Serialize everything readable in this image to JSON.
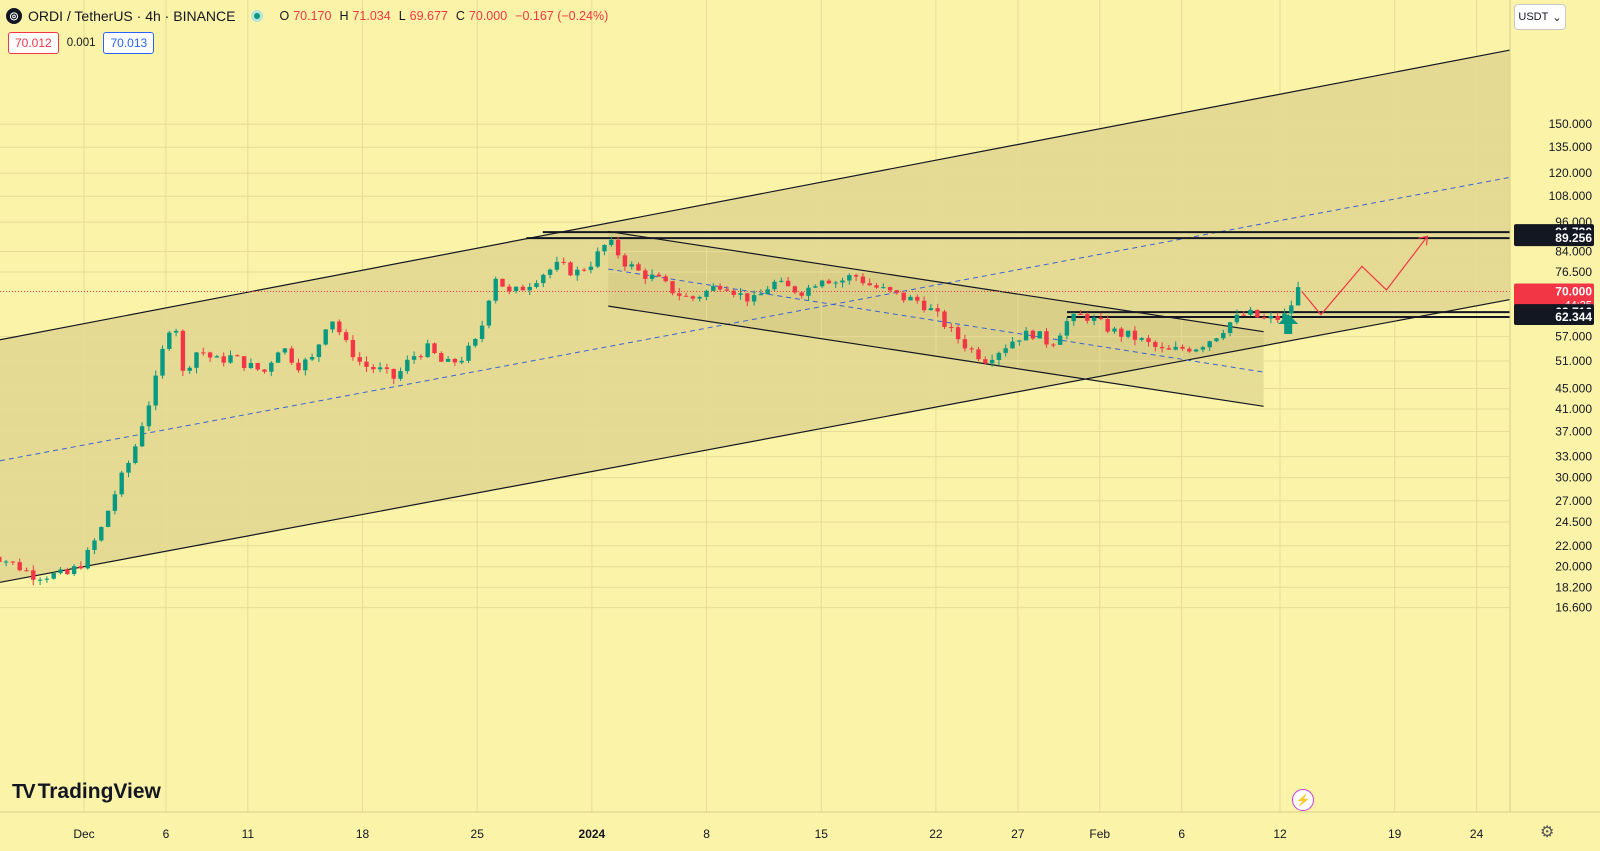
{
  "header": {
    "symbol_icon": "ordi-coin-icon",
    "title": "ORDI / TetherUS · 4h · BINANCE",
    "open_label": "O",
    "open": "70.170",
    "high_label": "H",
    "high": "71.034",
    "low_label": "L",
    "low": "69.677",
    "close_label": "C",
    "close": "70.000",
    "change": "−0.167 (−0.24%)"
  },
  "quote": {
    "sell": "70.012",
    "spread": "0.001",
    "buy": "70.013"
  },
  "currency_selector": {
    "label": "USDT",
    "icon": "chevron-down-icon"
  },
  "branding": {
    "logo_text": "TradingView",
    "logo_mark": "TV"
  },
  "colors": {
    "background": "#fbf3a8",
    "bull": "#089981",
    "bear": "#f23645",
    "channel_fill": "#c9bd7a",
    "dashed_midline": "#3a63d6",
    "projection": "#f23645"
  },
  "chart_data": {
    "type": "candlestick",
    "title": "ORDI / TetherUS · 4h · BINANCE",
    "y_scale": "log",
    "ylim": [
      15.7,
      194
    ],
    "xlabel": "",
    "ylabel": "",
    "x_ticks": [
      "Dec",
      "6",
      "11",
      "18",
      "25",
      "2024",
      "8",
      "15",
      "22",
      "27",
      "Feb",
      "6",
      "12",
      "19",
      "24"
    ],
    "x_tick_dates": [
      "2023-12-01",
      "2023-12-06",
      "2023-12-11",
      "2023-12-18",
      "2023-12-25",
      "2024-01-01",
      "2024-01-08",
      "2024-01-15",
      "2024-01-22",
      "2024-01-27",
      "2024-02-01",
      "2024-02-06",
      "2024-02-12",
      "2024-02-19",
      "2024-02-24"
    ],
    "y_ticks": [
      "150.000",
      "135.000",
      "120.000",
      "108.000",
      "96.000",
      "84.000",
      "76.500",
      "57.000",
      "51.000",
      "45.000",
      "41.000",
      "37.000",
      "33.000",
      "30.000",
      "27.000",
      "24.500",
      "22.000",
      "20.000",
      "18.200",
      "16.600"
    ],
    "y_tick_values": [
      150,
      135,
      120,
      108,
      96,
      84,
      76.5,
      57,
      51,
      45,
      41,
      37,
      33,
      30,
      27,
      24.5,
      22,
      20,
      18.2,
      16.6
    ],
    "price_labels": [
      {
        "value": 91.72,
        "text": "91.720",
        "style": "dark"
      },
      {
        "value": 89.256,
        "text": "89.256",
        "style": "dark"
      },
      {
        "value": 70.0,
        "text": "70.000",
        "sub": "44:25",
        "style": "current"
      },
      {
        "value": 63.716,
        "text": "63.716",
        "style": "dark"
      },
      {
        "value": 62.344,
        "text": "62.344",
        "style": "dark"
      }
    ],
    "current_price": 70.0,
    "price_path": [
      [
        "2023-11-25",
        21.5
      ],
      [
        "2023-11-27",
        20.0
      ],
      [
        "2023-11-28",
        19.2
      ],
      [
        "2023-11-30",
        19.3
      ],
      [
        "2023-12-01",
        20.5
      ],
      [
        "2023-12-02",
        23.5
      ],
      [
        "2023-12-03",
        28.5
      ],
      [
        "2023-12-04",
        33.5
      ],
      [
        "2023-12-05",
        42.5
      ],
      [
        "2023-12-05T12",
        48.0
      ],
      [
        "2023-12-06",
        57.0
      ],
      [
        "2023-12-06T12",
        63.0
      ],
      [
        "2023-12-07",
        48.0
      ],
      [
        "2023-12-08",
        54.0
      ],
      [
        "2023-12-09",
        51.0
      ],
      [
        "2023-12-10",
        52.0
      ],
      [
        "2023-12-11",
        50.0
      ],
      [
        "2023-12-12",
        48.5
      ],
      [
        "2023-12-13",
        55.0
      ],
      [
        "2023-12-14",
        50.0
      ],
      [
        "2023-12-15",
        51.5
      ],
      [
        "2023-12-16",
        63.0
      ],
      [
        "2023-12-17",
        55.0
      ],
      [
        "2023-12-18",
        50.0
      ],
      [
        "2023-12-19",
        49.0
      ],
      [
        "2023-12-20",
        47.0
      ],
      [
        "2023-12-21",
        52.0
      ],
      [
        "2023-12-22",
        54.0
      ],
      [
        "2023-12-23",
        50.0
      ],
      [
        "2023-12-24",
        51.5
      ],
      [
        "2023-12-25",
        56.0
      ],
      [
        "2023-12-25T12",
        63.0
      ],
      [
        "2023-12-26",
        76.0
      ],
      [
        "2023-12-27",
        69.0
      ],
      [
        "2023-12-28",
        72.0
      ],
      [
        "2023-12-29",
        76.0
      ],
      [
        "2023-12-30",
        79.0
      ],
      [
        "2023-12-31",
        76.0
      ],
      [
        "2024-01-01",
        80.0
      ],
      [
        "2024-01-02",
        88.0
      ],
      [
        "2024-01-03",
        80.0
      ],
      [
        "2024-01-04",
        76.0
      ],
      [
        "2024-01-05",
        74.0
      ],
      [
        "2024-01-06",
        70.0
      ],
      [
        "2024-01-07",
        67.5
      ],
      [
        "2024-01-08",
        70.0
      ],
      [
        "2024-01-09",
        73.0
      ],
      [
        "2024-01-10",
        69.0
      ],
      [
        "2024-01-11",
        67.0
      ],
      [
        "2024-01-12",
        73.0
      ],
      [
        "2024-01-13",
        71.0
      ],
      [
        "2024-01-14",
        70.0
      ],
      [
        "2024-01-15",
        75.0
      ],
      [
        "2024-01-16",
        73.0
      ],
      [
        "2024-01-17",
        75.5
      ],
      [
        "2024-01-18",
        72.0
      ],
      [
        "2024-01-19",
        70.0
      ],
      [
        "2024-01-20",
        68.0
      ],
      [
        "2024-01-21",
        67.0
      ],
      [
        "2024-01-22",
        63.0
      ],
      [
        "2024-01-23",
        58.0
      ],
      [
        "2024-01-24",
        54.0
      ],
      [
        "2024-01-25",
        51.5
      ],
      [
        "2024-01-26",
        54.0
      ],
      [
        "2024-01-27",
        57.0
      ],
      [
        "2024-01-28",
        58.0
      ],
      [
        "2024-01-29",
        55.0
      ],
      [
        "2024-01-30",
        61.0
      ],
      [
        "2024-01-31",
        63.0
      ],
      [
        "2024-02-01",
        60.5
      ],
      [
        "2024-02-02",
        58.0
      ],
      [
        "2024-02-03",
        57.0
      ],
      [
        "2024-02-04",
        55.0
      ],
      [
        "2024-02-05",
        53.0
      ],
      [
        "2024-02-06",
        54.0
      ],
      [
        "2024-02-07",
        54.5
      ],
      [
        "2024-02-08",
        57.0
      ],
      [
        "2024-02-09",
        61.0
      ],
      [
        "2024-02-10",
        63.5
      ],
      [
        "2024-02-11",
        61.5
      ],
      [
        "2024-02-12",
        62.0
      ],
      [
        "2024-02-12T12",
        63.0
      ],
      [
        "2024-02-13",
        71.0
      ],
      [
        "2024-02-13T08",
        70.0
      ]
    ],
    "annotations": {
      "ascending_channel": {
        "upper": [
          [
            "2023-11-25",
            55.5
          ],
          [
            "2024-02-25",
            207.0
          ]
        ],
        "lower": [
          [
            "2023-11-25",
            18.4
          ],
          [
            "2024-02-25",
            66.5
          ]
        ],
        "midline_dashed": [
          [
            "2023-11-25",
            32.0
          ],
          [
            "2024-02-25",
            116.0
          ]
        ]
      },
      "descending_channel": {
        "upper": [
          [
            "2024-01-02",
            92.0
          ],
          [
            "2024-02-11",
            58.3
          ]
        ],
        "lower": [
          [
            "2024-01-02",
            65.5
          ],
          [
            "2024-02-11",
            41.5
          ]
        ],
        "midline_dashed": [
          [
            "2024-01-02",
            77.5
          ],
          [
            "2024-02-11",
            48.5
          ]
        ]
      },
      "horizontal_levels": [
        {
          "value": 91.72,
          "from": "2023-12-29"
        },
        {
          "value": 89.256,
          "from": "2023-12-28"
        },
        {
          "value": 63.716,
          "from": "2024-01-30"
        },
        {
          "value": 62.344,
          "from": "2024-01-30"
        }
      ],
      "up_arrow": [
        "2024-02-12T12",
        58.2
      ],
      "projection_path": [
        [
          "2024-02-13T08",
          70.0
        ],
        [
          "2024-02-14T12",
          63.0
        ],
        [
          "2024-02-17",
          78.5
        ],
        [
          "2024-02-18T12",
          70.5
        ],
        [
          "2024-02-21",
          90.0
        ]
      ]
    }
  }
}
